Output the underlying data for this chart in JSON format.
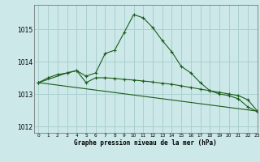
{
  "title": "Graphe pression niveau de la mer (hPa)",
  "bg_color": "#cce8e8",
  "grid_color": "#aacfcf",
  "line_color": "#1a5c1a",
  "xlim": [
    -0.5,
    23
  ],
  "ylim": [
    1011.8,
    1015.75
  ],
  "yticks": [
    1012,
    1013,
    1014,
    1015
  ],
  "xticks": [
    0,
    1,
    2,
    3,
    4,
    5,
    6,
    7,
    8,
    9,
    10,
    11,
    12,
    13,
    14,
    15,
    16,
    17,
    18,
    19,
    20,
    21,
    22,
    23
  ],
  "series1_x": [
    0,
    1,
    2,
    3,
    4,
    5,
    6,
    7,
    8,
    9,
    10,
    11,
    12,
    13,
    14,
    15,
    16,
    17,
    18,
    19,
    20,
    21,
    22,
    23
  ],
  "series1_y": [
    1013.35,
    1013.5,
    1013.6,
    1013.65,
    1013.72,
    1013.55,
    1013.65,
    1014.25,
    1014.35,
    1014.9,
    1015.45,
    1015.35,
    1015.05,
    1014.65,
    1014.3,
    1013.85,
    1013.65,
    1013.35,
    1013.1,
    1013.0,
    1012.95,
    1012.85,
    1012.6,
    1012.45
  ],
  "series2_x": [
    0,
    3,
    4,
    5,
    6,
    7,
    8,
    9,
    10,
    11,
    12,
    13,
    14,
    15,
    16,
    17,
    18,
    19,
    20,
    21,
    22,
    23
  ],
  "series2_y": [
    1013.35,
    1013.65,
    1013.72,
    1013.35,
    1013.5,
    1013.5,
    1013.48,
    1013.45,
    1013.43,
    1013.4,
    1013.37,
    1013.33,
    1013.3,
    1013.25,
    1013.2,
    1013.15,
    1013.1,
    1013.05,
    1013.0,
    1012.95,
    1012.82,
    1012.47
  ],
  "series3_x": [
    0,
    23
  ],
  "series3_y": [
    1013.35,
    1012.47
  ]
}
